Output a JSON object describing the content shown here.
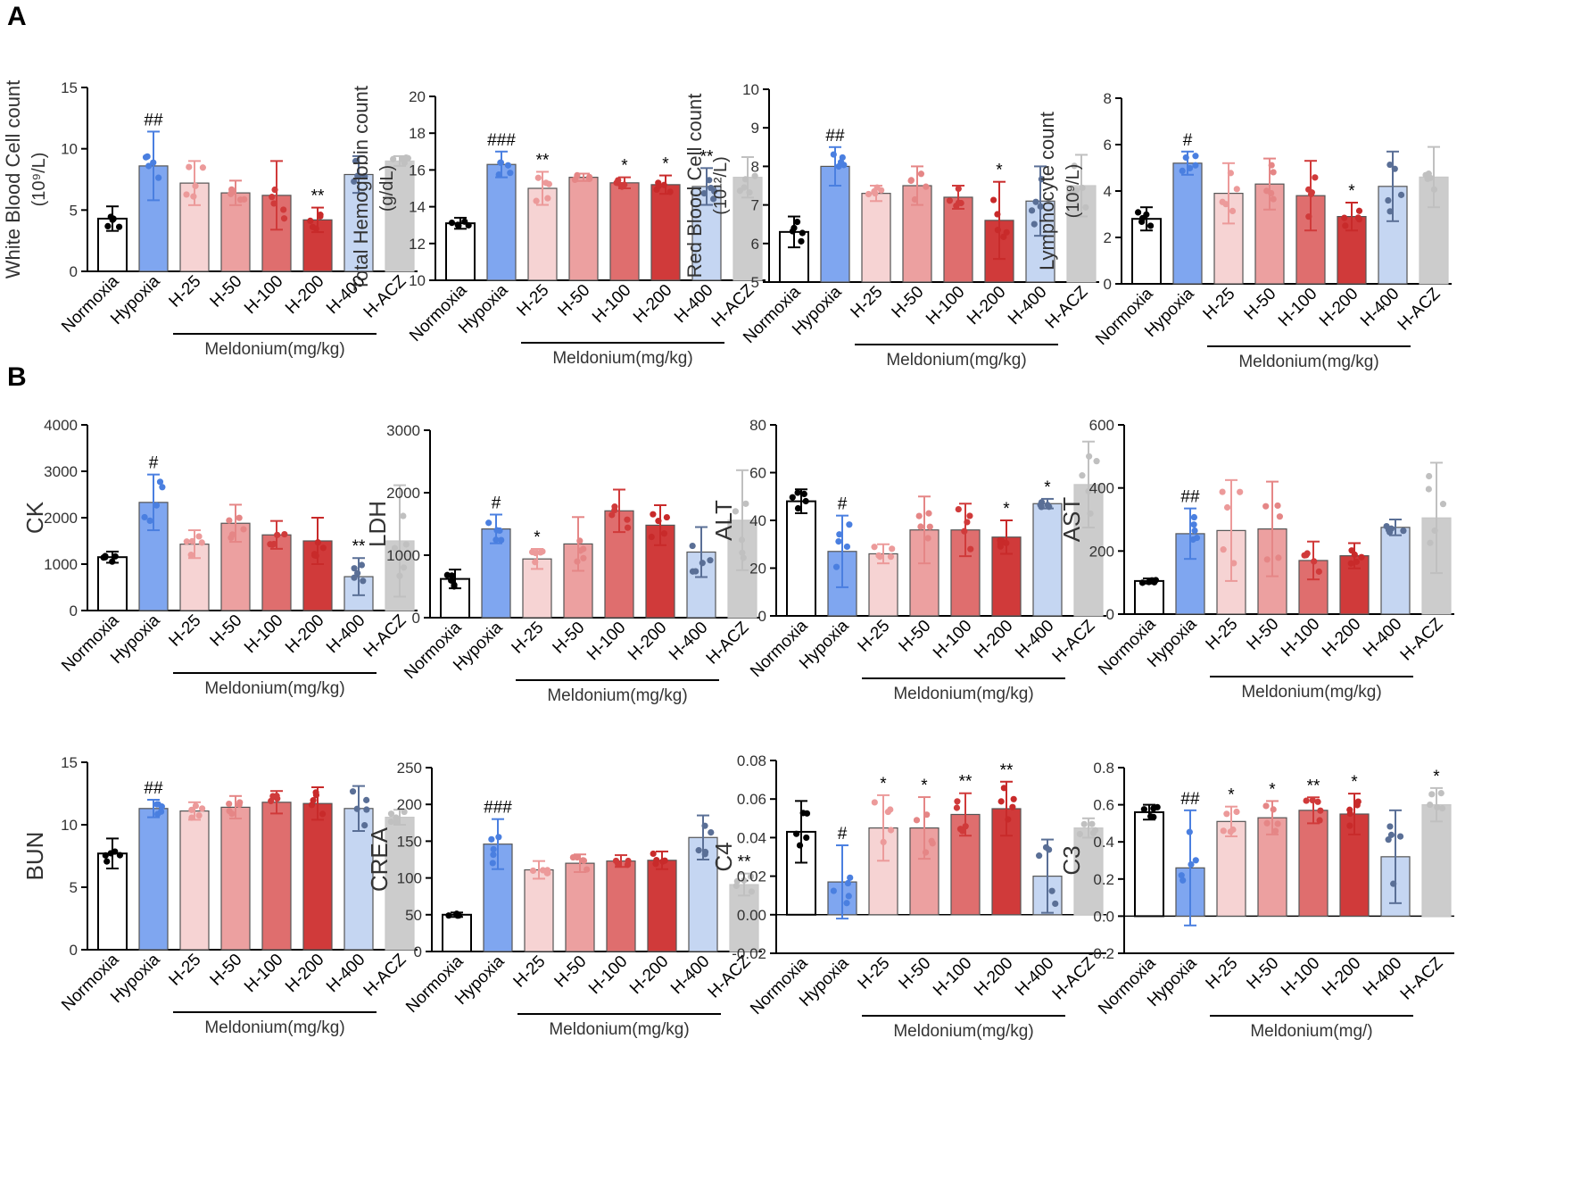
{
  "figure": {
    "panel_labels": [
      "A",
      "B"
    ],
    "categories": [
      "Normoxia",
      "Hypoxia",
      "H-25",
      "H-50",
      "H-100",
      "H-200",
      "H-400",
      "H-ACZ"
    ],
    "group_label": "Meldonium(mg/kg)",
    "colors": {
      "Normoxia": "#000000",
      "Hypoxia": "#7fa6f0",
      "H-25": "#f6d3d3",
      "H-50": "#eca0a0",
      "H-100": "#df6e6e",
      "H-200": "#d03a3a",
      "H-400": "#c5d6f2",
      "H-ACZ": "#cccccc"
    },
    "point_colors": {
      "Normoxia": "#000000",
      "Hypoxia": "#4a7fe0",
      "H-25": "#ec9a9a",
      "H-50": "#e58686",
      "H-100": "#d03a3a",
      "H-200": "#c82a2a",
      "H-400": "#5a6f96",
      "H-ACZ": "#c0c0c0"
    }
  },
  "chart_data": [
    {
      "type": "bar",
      "ylabel": "White Blood Cell count",
      "ylabel2": "(10⁹/L)",
      "ylim": [
        0,
        15
      ],
      "yticks": [
        0,
        5,
        10,
        15
      ],
      "ytick_labels": [
        "0",
        "5",
        "10",
        "15"
      ],
      "categories": [
        "Normoxia",
        "Hypoxia",
        "H-25",
        "H-50",
        "H-100",
        "H-200",
        "H-400",
        "H-ACZ"
      ],
      "values": [
        4.3,
        8.6,
        7.2,
        6.4,
        6.2,
        4.2,
        7.9,
        9.0
      ],
      "errors": [
        1.0,
        2.8,
        1.8,
        1.0,
        2.8,
        1.0,
        1.5,
        0.4
      ],
      "annotations": [
        "",
        "##",
        "",
        "",
        "",
        "**",
        "",
        ""
      ],
      "group_label": "Meldonium(mg/kg)"
    },
    {
      "type": "bar",
      "ylabel": "Total Hemoglobin count",
      "ylabel2": "(g/dL)",
      "ylim": [
        10,
        20
      ],
      "yticks": [
        10,
        12,
        14,
        16,
        18,
        20
      ],
      "ytick_labels": [
        "10",
        "12",
        "14",
        "16",
        "18",
        "20"
      ],
      "categories": [
        "Normoxia",
        "Hypoxia",
        "H-25",
        "H-50",
        "H-100",
        "H-200",
        "H-400",
        "H-ACZ"
      ],
      "values": [
        13.1,
        16.3,
        15.0,
        15.6,
        15.3,
        15.2,
        15.1,
        15.6
      ],
      "errors": [
        0.3,
        0.7,
        0.9,
        0.2,
        0.3,
        0.5,
        1.0,
        1.1
      ],
      "annotations": [
        "",
        "###",
        "**",
        "",
        "*",
        "*",
        "**",
        ""
      ],
      "group_label": "Meldonium(mg/kg)"
    },
    {
      "type": "bar",
      "ylabel": "Red Blood Cell count",
      "ylabel2": "(10¹²/L)",
      "ylim": [
        5,
        10
      ],
      "yticks": [
        5,
        6,
        7,
        8,
        9,
        10
      ],
      "ytick_labels": [
        "5",
        "6",
        "7",
        "8",
        "9",
        "10"
      ],
      "categories": [
        "Normoxia",
        "Hypoxia",
        "H-25",
        "H-50",
        "H-100",
        "H-200",
        "H-400",
        "H-ACZ"
      ],
      "values": [
        6.3,
        8.0,
        7.3,
        7.5,
        7.2,
        6.6,
        7.1,
        7.5
      ],
      "errors": [
        0.4,
        0.5,
        0.2,
        0.5,
        0.3,
        1.0,
        0.9,
        0.8
      ],
      "annotations": [
        "",
        "##",
        "",
        "",
        "",
        "*",
        "",
        ""
      ],
      "group_label": "Meldonium(mg/kg)"
    },
    {
      "type": "bar",
      "ylabel": "Lymphocyte count",
      "ylabel2": "(10⁹/L)",
      "ylim": [
        0,
        8
      ],
      "yticks": [
        0,
        2,
        4,
        6,
        8
      ],
      "ytick_labels": [
        "0",
        "2",
        "4",
        "6",
        "8"
      ],
      "categories": [
        "Normoxia",
        "Hypoxia",
        "H-25",
        "H-50",
        "H-100",
        "H-200",
        "H-400",
        "H-ACZ"
      ],
      "values": [
        2.8,
        5.2,
        3.9,
        4.3,
        3.8,
        2.9,
        4.2,
        4.6
      ],
      "errors": [
        0.5,
        0.5,
        1.3,
        1.1,
        1.5,
        0.6,
        1.5,
        1.3
      ],
      "annotations": [
        "",
        "#",
        "",
        "",
        "",
        "*",
        "",
        ""
      ],
      "group_label": "Meldonium(mg/kg)"
    },
    {
      "type": "bar",
      "ylabel": "CK",
      "ylabel2": "",
      "ylim": [
        0,
        4000
      ],
      "yticks": [
        0,
        1000,
        2000,
        3000,
        4000
      ],
      "ytick_labels": [
        "0",
        "1000",
        "2000",
        "3000",
        "4000"
      ],
      "categories": [
        "Normoxia",
        "Hypoxia",
        "H-25",
        "H-50",
        "H-100",
        "H-200",
        "H-400",
        "H-ACZ"
      ],
      "values": [
        1150,
        2330,
        1430,
        1880,
        1630,
        1500,
        730,
        1500
      ],
      "errors": [
        120,
        600,
        300,
        400,
        300,
        500,
        400,
        1200
      ],
      "annotations": [
        "",
        "#",
        "",
        "",
        "",
        "",
        "**",
        ""
      ],
      "group_label": "Meldonium(mg/kg)"
    },
    {
      "type": "bar",
      "ylabel": "LDH",
      "ylabel2": "",
      "ylim": [
        0,
        3000
      ],
      "yticks": [
        0,
        1000,
        2000,
        3000
      ],
      "ytick_labels": [
        "0",
        "1000",
        "2000",
        "3000"
      ],
      "categories": [
        "Normoxia",
        "Hypoxia",
        "H-25",
        "H-50",
        "H-100",
        "H-200",
        "H-400",
        "H-ACZ"
      ],
      "values": [
        620,
        1420,
        940,
        1180,
        1710,
        1480,
        1050,
        1560
      ],
      "errors": [
        150,
        230,
        160,
        430,
        340,
        320,
        400,
        800
      ],
      "annotations": [
        "",
        "#",
        "*",
        "",
        "",
        "",
        "",
        ""
      ],
      "group_label": "Meldonium(mg/kg)"
    },
    {
      "type": "bar",
      "ylabel": "ALT",
      "ylabel2": "",
      "ylim": [
        0,
        80
      ],
      "yticks": [
        0,
        20,
        40,
        60,
        80
      ],
      "ytick_labels": [
        "0",
        "20",
        "40",
        "60",
        "80"
      ],
      "categories": [
        "Normoxia",
        "Hypoxia",
        "H-25",
        "H-50",
        "H-100",
        "H-200",
        "H-400",
        "H-ACZ"
      ],
      "values": [
        48,
        27,
        26,
        36,
        36,
        33,
        47,
        55
      ],
      "errors": [
        5,
        15,
        4,
        14,
        11,
        7,
        2,
        18
      ],
      "annotations": [
        "",
        "#",
        "",
        "",
        "",
        "*",
        "*",
        ""
      ],
      "group_label": "Meldonium(mg/kg)"
    },
    {
      "type": "bar",
      "ylabel": "AST",
      "ylabel2": "",
      "ylim": [
        0,
        600
      ],
      "yticks": [
        0,
        200,
        400,
        600
      ],
      "ytick_labels": [
        "0",
        "200",
        "400",
        "600"
      ],
      "categories": [
        "Normoxia",
        "Hypoxia",
        "H-25",
        "H-50",
        "H-100",
        "H-200",
        "H-400",
        "H-ACZ"
      ],
      "values": [
        105,
        255,
        265,
        270,
        170,
        185,
        275,
        305
      ],
      "errors": [
        8,
        80,
        160,
        150,
        60,
        40,
        25,
        175
      ],
      "annotations": [
        "",
        "##",
        "",
        "",
        "",
        "",
        "",
        ""
      ],
      "group_label": "Meldonium(mg/kg)"
    },
    {
      "type": "bar",
      "ylabel": "BUN",
      "ylabel2": "",
      "ylim": [
        0,
        15
      ],
      "yticks": [
        0,
        5,
        10,
        15
      ],
      "ytick_labels": [
        "0",
        "5",
        "10",
        "15"
      ],
      "categories": [
        "Normoxia",
        "Hypoxia",
        "H-25",
        "H-50",
        "H-100",
        "H-200",
        "H-400",
        "H-ACZ"
      ],
      "values": [
        7.7,
        11.3,
        11.1,
        11.4,
        11.8,
        11.7,
        11.3,
        10.6
      ],
      "errors": [
        1.2,
        0.7,
        0.7,
        0.9,
        0.9,
        1.3,
        1.8,
        0.6
      ],
      "annotations": [
        "",
        "##",
        "",
        "",
        "",
        "",
        "",
        ""
      ],
      "group_label": "Meldonium(mg/kg)"
    },
    {
      "type": "bar",
      "ylabel": "CREA",
      "ylabel2": "",
      "ylim": [
        0,
        250
      ],
      "yticks": [
        0,
        50,
        100,
        150,
        200,
        250
      ],
      "ytick_labels": [
        "0",
        "50",
        "100",
        "150",
        "200",
        "250"
      ],
      "categories": [
        "Normoxia",
        "Hypoxia",
        "H-25",
        "H-50",
        "H-100",
        "H-200",
        "H-400",
        "H-ACZ"
      ],
      "values": [
        50,
        146,
        111,
        120,
        123,
        124,
        155,
        91
      ],
      "errors": [
        3,
        34,
        12,
        12,
        8,
        12,
        30,
        15
      ],
      "annotations": [
        "",
        "###",
        "",
        "",
        "",
        "",
        "",
        "**"
      ],
      "group_label": "Meldonium(mg/kg)"
    },
    {
      "type": "bar",
      "ylabel": "C4",
      "ylabel2": "",
      "ylim": [
        -0.02,
        0.08
      ],
      "yticks": [
        -0.02,
        0,
        0.02,
        0.04,
        0.06,
        0.08
      ],
      "ytick_labels": [
        "-0.02",
        "0.00",
        "0.02",
        "0.04",
        "0.06",
        "0.08"
      ],
      "zero_line": true,
      "categories": [
        "Normoxia",
        "Hypoxia",
        "H-25",
        "H-50",
        "H-100",
        "H-200",
        "H-400",
        "H-ACZ"
      ],
      "values": [
        0.043,
        0.017,
        0.045,
        0.045,
        0.052,
        0.055,
        0.02,
        0.045
      ],
      "errors": [
        0.016,
        0.019,
        0.017,
        0.016,
        0.011,
        0.014,
        0.019,
        0.005
      ],
      "annotations": [
        "",
        "#",
        "*",
        "*",
        "**",
        "**",
        "",
        ""
      ],
      "group_label": "Meldonium(mg/kg)"
    },
    {
      "type": "bar",
      "ylabel": "C3",
      "ylabel2": "",
      "ylim": [
        -0.2,
        0.8
      ],
      "yticks": [
        -0.2,
        0,
        0.2,
        0.4,
        0.6,
        0.8
      ],
      "ytick_labels": [
        "-0.2",
        "0.0",
        "0.2",
        "0.4",
        "0.6",
        "0.8"
      ],
      "zero_line": true,
      "categories": [
        "Normoxia",
        "Hypoxia",
        "H-25",
        "H-50",
        "H-100",
        "H-200",
        "H-400",
        "H-ACZ"
      ],
      "values": [
        0.56,
        0.26,
        0.51,
        0.53,
        0.57,
        0.55,
        0.32,
        0.6
      ],
      "errors": [
        0.04,
        0.31,
        0.08,
        0.09,
        0.07,
        0.11,
        0.25,
        0.09
      ],
      "annotations": [
        "",
        "##",
        "*",
        "*",
        "**",
        "*",
        "",
        "*"
      ],
      "group_label": "Meldonium(mg/)"
    }
  ]
}
